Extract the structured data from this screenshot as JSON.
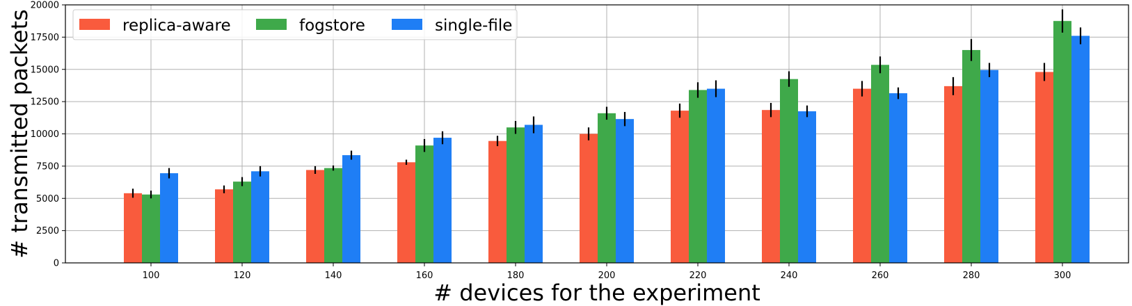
{
  "chart_data": {
    "type": "bar",
    "title": "",
    "xlabel": "# devices for the experiment",
    "ylabel": "# transmitted packets",
    "categories": [
      "100",
      "120",
      "140",
      "160",
      "180",
      "200",
      "220",
      "240",
      "260",
      "280",
      "300"
    ],
    "ylim": [
      0,
      20000
    ],
    "yticks": [
      0,
      2500,
      5000,
      7500,
      10000,
      12500,
      15000,
      17500,
      20000
    ],
    "grid": true,
    "legend_position": "top-left",
    "series": [
      {
        "name": "replica-aware",
        "color": "#f95b3d",
        "values": [
          5400,
          5700,
          7200,
          7800,
          9450,
          10000,
          11800,
          11850,
          13500,
          13700,
          14800
        ],
        "errors": [
          350,
          300,
          300,
          200,
          400,
          500,
          550,
          550,
          600,
          700,
          700
        ]
      },
      {
        "name": "fogstore",
        "color": "#3fa94a",
        "values": [
          5300,
          6300,
          7350,
          9100,
          10500,
          11600,
          13400,
          14250,
          15350,
          16500,
          18750
        ]
      },
      {
        "name": "single-file",
        "color": "#1f7ef5",
        "values": [
          6950,
          7100,
          8350,
          9700,
          10700,
          11150,
          13500,
          11750,
          13150,
          14950,
          17600
        ]
      }
    ],
    "error_bars": {
      "fogstore": [
        300,
        350,
        200,
        500,
        500,
        500,
        600,
        600,
        650,
        850,
        900
      ],
      "single-file": [
        400,
        400,
        350,
        500,
        650,
        550,
        650,
        450,
        450,
        550,
        650
      ]
    }
  }
}
